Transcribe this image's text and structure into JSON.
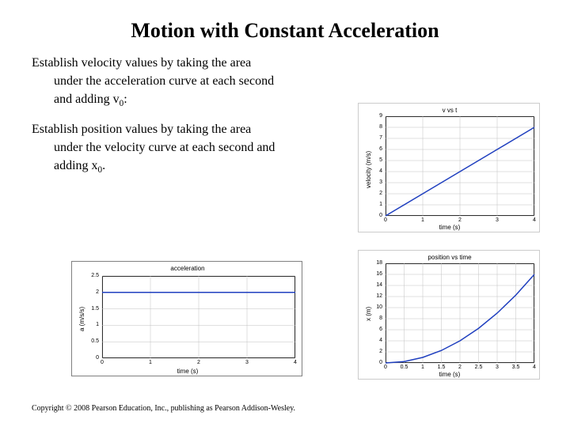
{
  "title": "Motion with Constant Acceleration",
  "para1_line1": "Establish velocity values by taking the area",
  "para1_line2": "under the acceleration curve at each second",
  "para1_line3_a": "and adding v",
  "para1_line3_b": "0",
  "para1_line3_c": ":",
  "para2_line1": "Establish position values by taking the area",
  "para2_line2": "under the velocity curve at each second and",
  "para2_line3_a": "adding x",
  "para2_line3_b": "0",
  "para2_line3_c": ".",
  "copyright": "Copyright © 2008 Pearson Education, Inc., publishing as Pearson Addison-Wesley.",
  "charts": {
    "accel": {
      "type": "line",
      "title": "acceleration",
      "xlabel": "time (s)",
      "ylabel": "a (m/s/s)",
      "xlim": [
        0,
        4
      ],
      "ylim": [
        0,
        2.5
      ],
      "xticks": [
        0,
        1,
        2,
        3,
        4
      ],
      "yticks": [
        0.0,
        0.5,
        1.0,
        1.5,
        2.0,
        2.5
      ],
      "line_color": "#1f3fbf",
      "line_width": 1.5,
      "grid_color": "#c0c0c0",
      "data": {
        "x": [
          0,
          1,
          2,
          3,
          4
        ],
        "y": [
          2,
          2,
          2,
          2,
          2
        ]
      }
    },
    "vel": {
      "type": "line",
      "title": "v vs t",
      "xlabel": "time (s)",
      "ylabel": "velocity (m/s)",
      "xlim": [
        0,
        4
      ],
      "ylim": [
        0,
        9
      ],
      "xticks": [
        0,
        1,
        2,
        3,
        4
      ],
      "yticks": [
        0,
        1,
        2,
        3,
        4,
        5,
        6,
        7,
        8,
        9
      ],
      "line_color": "#1f3fbf",
      "line_width": 1.5,
      "grid_color": "#c0c0c0",
      "data": {
        "x": [
          0,
          1,
          2,
          3,
          4
        ],
        "y": [
          0,
          2,
          4,
          6,
          8
        ]
      }
    },
    "pos": {
      "type": "line",
      "title": "position vs time",
      "xlabel": "time (s)",
      "ylabel": "x (m)",
      "xlim": [
        0,
        4
      ],
      "ylim": [
        0,
        18
      ],
      "xticks": [
        0,
        0.5,
        1.0,
        1.5,
        2.0,
        2.5,
        3.0,
        3.5,
        4.0
      ],
      "yticks": [
        0,
        2,
        4,
        6,
        8,
        10,
        12,
        14,
        16,
        18
      ],
      "line_color": "#1f3fbf",
      "line_width": 1.5,
      "grid_color": "#c0c0c0",
      "data": {
        "x": [
          0,
          0.5,
          1,
          1.5,
          2,
          2.5,
          3,
          3.5,
          4
        ],
        "y": [
          0,
          0.25,
          1,
          2.25,
          4,
          6.25,
          9,
          12.25,
          16
        ]
      }
    }
  }
}
